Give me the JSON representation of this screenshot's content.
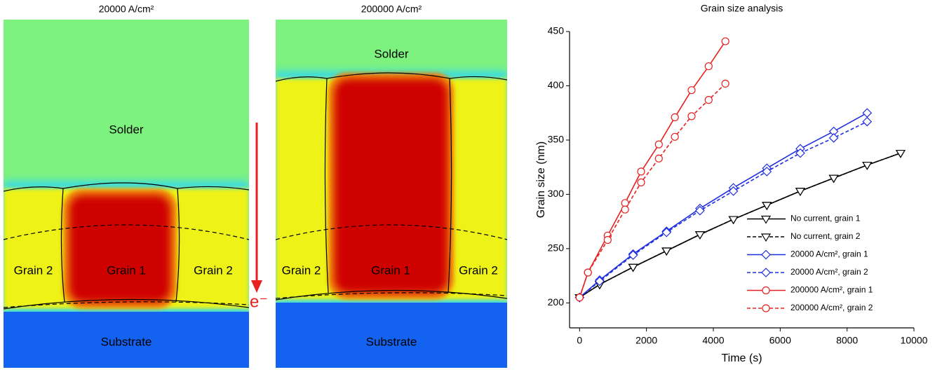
{
  "panels": [
    {
      "title": "20000 A/cm²",
      "labels": {
        "solder": "Solder",
        "grain_left": "Grain 2",
        "grain_center": "Grain 1",
        "grain_right": "Grain 2",
        "substrate": "Substrate"
      }
    },
    {
      "title": "200000 A/cm²",
      "labels": {
        "solder": "Solder",
        "grain_left": "Grain 2",
        "grain_center": "Grain 1",
        "grain_right": "Grain 2",
        "substrate": "Substrate"
      }
    }
  ],
  "arrow_label": "e⁻",
  "chart_data": {
    "type": "line",
    "title": "Grain size analysis",
    "x_label": "Time (s)",
    "y_label": "Grain size (nm)",
    "xlim": [
      -300,
      10000
    ],
    "ylim": [
      177,
      450
    ],
    "xticks": [
      0,
      2000,
      4000,
      6000,
      8000,
      10000
    ],
    "yticks": [
      200,
      250,
      300,
      350,
      400,
      450
    ],
    "legend": "lower right",
    "series": [
      {
        "name": "No current, grain 1",
        "color": "#000000",
        "style": "solid",
        "marker": "triangle-down",
        "x": [
          0,
          600,
          1600,
          2600,
          3600,
          4600,
          5600,
          6600,
          7600,
          8600,
          9600
        ],
        "values": [
          205,
          217,
          233,
          248,
          263,
          277,
          290,
          303,
          315,
          327,
          338
        ]
      },
      {
        "name": "No current, grain 2",
        "color": "#000000",
        "style": "dashed",
        "marker": "triangle-down",
        "x": [
          0,
          600,
          1600,
          2600,
          3600,
          4600,
          5600,
          6600,
          7600,
          8600,
          9600
        ],
        "values": [
          205,
          217,
          233,
          248,
          263,
          277,
          290,
          303,
          315,
          327,
          338
        ]
      },
      {
        "name": "20000 A/cm², grain 1",
        "color": "#1f2ee0",
        "style": "solid",
        "marker": "diamond",
        "x": [
          0,
          600,
          1600,
          2600,
          3600,
          4600,
          5600,
          6600,
          7600,
          8600
        ],
        "values": [
          205,
          221,
          245,
          266,
          287,
          306,
          324,
          342,
          358,
          375
        ]
      },
      {
        "name": "20000 A/cm², grain 2",
        "color": "#1f2ee0",
        "style": "dashed",
        "marker": "diamond",
        "x": [
          0,
          600,
          1600,
          2600,
          3600,
          4600,
          5600,
          6600,
          7600,
          8600
        ],
        "values": [
          205,
          220,
          244,
          265,
          285,
          303,
          321,
          338,
          352,
          367
        ]
      },
      {
        "name": "200000 A/cm², grain 1",
        "color": "#e82020",
        "style": "solid",
        "marker": "circle",
        "x": [
          0,
          250,
          840,
          1360,
          1840,
          2370,
          2850,
          3350,
          3860,
          4360
        ],
        "values": [
          205,
          228,
          262,
          292,
          321,
          346,
          371,
          396,
          418,
          441
        ]
      },
      {
        "name": "200000 A/cm², grain 2",
        "color": "#e82020",
        "style": "dashed",
        "marker": "circle",
        "x": [
          0,
          250,
          840,
          1360,
          1840,
          2370,
          2850,
          3350,
          3860,
          4360
        ],
        "values": [
          205,
          228,
          258,
          286,
          311,
          333,
          353,
          372,
          387,
          402
        ]
      }
    ]
  }
}
